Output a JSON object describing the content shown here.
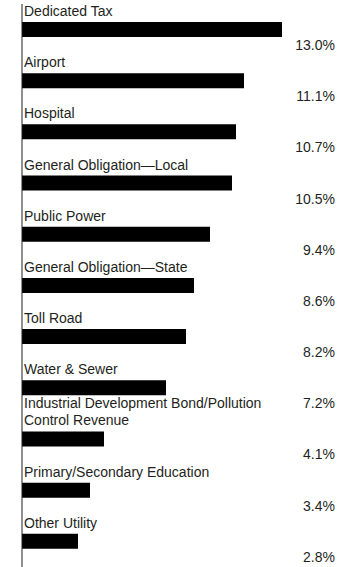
{
  "chart_data": {
    "type": "bar",
    "orientation": "horizontal",
    "categories": [
      "Dedicated Tax",
      "Airport",
      "Hospital",
      "General Obligation—Local",
      "Public Power",
      "General Obligation—State",
      "Toll Road",
      "Water & Sewer",
      "Industrial Development Bond/Pollution Control Revenue",
      "Primary/Secondary Education",
      "Other Utility"
    ],
    "values": [
      13.0,
      11.1,
      10.7,
      10.5,
      9.4,
      8.6,
      8.2,
      7.2,
      4.1,
      3.4,
      2.8
    ],
    "value_labels": [
      "13.0%",
      "11.1%",
      "10.7%",
      "10.5%",
      "9.4%",
      "8.6%",
      "8.2%",
      "7.2%",
      "4.1%",
      "3.4%",
      "2.8%"
    ],
    "color": "#000000",
    "xlim": [
      0,
      13
    ],
    "data_labels": true,
    "tick_labels": false,
    "grid": false
  }
}
